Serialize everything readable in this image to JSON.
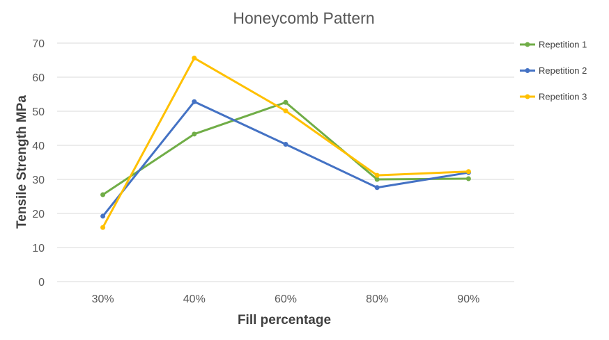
{
  "chart_data": {
    "type": "line",
    "title": "Honeycomb Pattern",
    "xlabel": "Fill percentage",
    "ylabel": "Tensile Strength MPa",
    "categories": [
      "30%",
      "40%",
      "60%",
      "80%",
      "90%"
    ],
    "ylim": [
      0,
      70
    ],
    "yticks": [
      0,
      10,
      20,
      30,
      40,
      50,
      60,
      70
    ],
    "grid": true,
    "legend_position": "right",
    "series": [
      {
        "name": "Repetition 1",
        "color": "#70ad47",
        "values": [
          25.5,
          43.3,
          52.6,
          30.0,
          30.2
        ]
      },
      {
        "name": "Repetition 2",
        "color": "#4472c4",
        "values": [
          19.2,
          52.8,
          40.3,
          27.6,
          32.0
        ]
      },
      {
        "name": "Repetition 3",
        "color": "#ffc000",
        "values": [
          15.9,
          65.6,
          50.1,
          31.2,
          32.3
        ]
      }
    ]
  }
}
